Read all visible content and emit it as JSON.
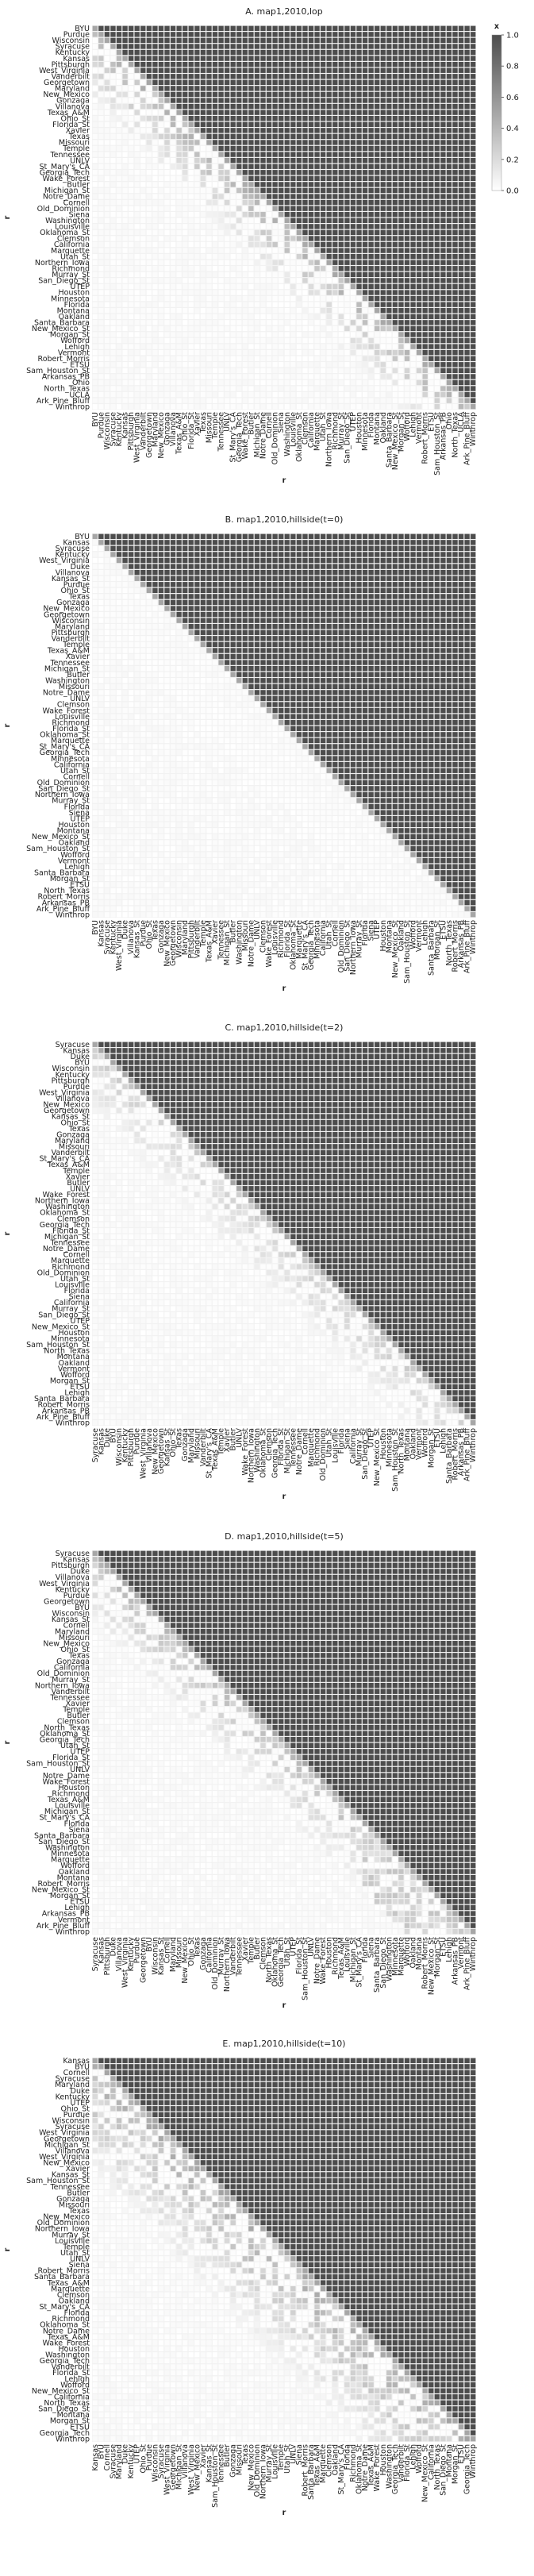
{
  "chart_data": {
    "type": "heatmap",
    "colormap": {
      "low": "#ffffff",
      "high": "#4d4d4d"
    },
    "colorbar": {
      "label": "x",
      "ticks": [
        1.0,
        0.8,
        0.6,
        0.4,
        0.2,
        0.0
      ],
      "range": [
        0.0,
        1.0
      ]
    },
    "panels": [
      {
        "title": "A. map1,2010,lop",
        "xlabel": "r",
        "ylabel": "r",
        "teams": [
          "BYU",
          "Purdue",
          "Wisconsin",
          "Syracuse",
          "Kentucky",
          "Kansas",
          "Pittsburgh",
          "West_Virginia",
          "Vanderbilt",
          "Georgetown",
          "Maryland",
          "New_Mexico",
          "Gonzaga",
          "Villanova",
          "Texas_A&M",
          "Ohio_St",
          "Florida_St",
          "Xavier",
          "Texas",
          "Missouri",
          "Temple",
          "Tennessee",
          "UNLV",
          "St_Mary's_CA",
          "Georgia_Tech",
          "Wake_Forest",
          "Butler",
          "Michigan_St",
          "Notre_Dame",
          "Cornell",
          "Old_Dominion",
          "Siena",
          "Washington",
          "Louisville",
          "Oklahoma_St",
          "Clemson",
          "California",
          "Marquette",
          "Utah_St",
          "Northern_Iowa",
          "Richmond",
          "Murray_St",
          "San_Diego_St",
          "UTEP",
          "Houston",
          "Minnesota",
          "Florida",
          "Montana",
          "Oakland",
          "Santa_Barbara",
          "New_Mexico_St",
          "Morgan_St",
          "Wofford",
          "Lehigh",
          "Vermont",
          "Robert_Morris",
          "ETSU",
          "Sam_Houston_St",
          "Arkansas_PB",
          "Ohio",
          "North_Texas",
          "UCLA",
          "Ark_Pine_Bluff",
          "Winthrop"
        ]
      },
      {
        "title": "B. map1,2010,hillside(t=0)",
        "xlabel": "r",
        "ylabel": "r",
        "teams": [
          "BYU",
          "Kansas",
          "Syracuse",
          "Kentucky",
          "West_Virginia",
          "Duke",
          "Villanova",
          "Kansas_St",
          "Purdue",
          "Ohio_St",
          "Texas",
          "Gonzaga",
          "New_Mexico",
          "Georgetown",
          "Wisconsin",
          "Maryland",
          "Pittsburgh",
          "Vanderbilt",
          "Temple",
          "Texas_A&M",
          "Xavier",
          "Tennessee",
          "Michigan_St",
          "Butler",
          "Washington",
          "Missouri",
          "Notre_Dame",
          "UNLV",
          "Clemson",
          "Wake_Forest",
          "Louisville",
          "Richmond",
          "Florida_St",
          "Oklahoma_St",
          "Marquette",
          "St_Mary's_CA",
          "Georgia_Tech",
          "Minnesota",
          "California",
          "Utah_St",
          "Cornell",
          "Old_Dominion",
          "San_Diego_St",
          "Northern_Iowa",
          "Murray_St",
          "Florida",
          "Siena",
          "UTEP",
          "Houston",
          "Montana",
          "New_Mexico_St",
          "Oakland",
          "Sam_Houston_St",
          "Wofford",
          "Vermont",
          "Lehigh",
          "Santa_Barbara",
          "Morgan_St",
          "ETSU",
          "North_Texas",
          "Robert_Morris",
          "Arkansas_PB",
          "Ark_Pine_Bluff",
          "Winthrop"
        ]
      },
      {
        "title": "C. map1,2010,hillside(t=2)",
        "xlabel": "r",
        "ylabel": "r",
        "teams": [
          "Syracuse",
          "Kansas",
          "Duke",
          "BYU",
          "Wisconsin",
          "Kentucky",
          "Pittsburgh",
          "Purdue",
          "West_Virginia",
          "Villanova",
          "New_Mexico",
          "Georgetown",
          "Kansas_St",
          "Ohio_St",
          "Texas",
          "Gonzaga",
          "Maryland",
          "Missouri",
          "Vanderbilt",
          "St_Mary's_CA",
          "Texas_A&M",
          "Temple",
          "Xavier",
          "Butler",
          "UNLV",
          "Wake_Forest",
          "Northern_Iowa",
          "Washington",
          "Oklahoma_St",
          "Clemson",
          "Georgia_Tech",
          "Florida_St",
          "Michigan_St",
          "Tennessee",
          "Notre_Dame",
          "Cornell",
          "Marquette",
          "Richmond",
          "Old_Dominion",
          "Utah_St",
          "Louisville",
          "Florida",
          "Siena",
          "California",
          "Murray_St",
          "San_Diego_St",
          "UTEP",
          "New_Mexico_St",
          "Houston",
          "Minnesota",
          "Sam_Houston_St",
          "North_Texas",
          "Montana",
          "Oakland",
          "Vermont",
          "Wofford",
          "Morgan_St",
          "ETSU",
          "Lehigh",
          "Santa_Barbara",
          "Robert_Morris",
          "Arkansas_PB",
          "Ark_Pine_Bluff",
          "Winthrop"
        ]
      },
      {
        "title": "D. map1,2010,hillside(t=5)",
        "xlabel": "r",
        "ylabel": "r",
        "teams": [
          "Syracuse",
          "Kansas",
          "Pittsburgh",
          "Duke",
          "Villanova",
          "West_Virginia",
          "Kentucky",
          "Purdue",
          "Georgetown",
          "BYU",
          "Wisconsin",
          "Kansas_St",
          "Cornell",
          "Maryland",
          "Missouri",
          "New_Mexico",
          "Ohio_St",
          "Texas",
          "Gonzaga",
          "California",
          "Old_Dominion",
          "Murray_St",
          "Northern_Iowa",
          "Vanderbilt",
          "Tennessee",
          "Xavier",
          "Temple",
          "Butler",
          "Clemson",
          "North_Texas",
          "Oklahoma_St",
          "Georgia_Tech",
          "Utah_St",
          "UTEP",
          "Florida_St",
          "Sam_Houston_St",
          "UNLV",
          "Notre_Dame",
          "Wake_Forest",
          "Houston",
          "Richmond",
          "Texas_A&M",
          "Louisville",
          "Michigan_St",
          "St_Mary's_CA",
          "Florida",
          "Siena",
          "Santa_Barbara",
          "San_Diego_St",
          "Washington",
          "Minnesota",
          "Marquette",
          "Wofford",
          "Oakland",
          "Montana",
          "Robert_Morris",
          "New_Mexico_St",
          "Morgan_St",
          "ETSU",
          "Lehigh",
          "Arkansas_PB",
          "Vermont",
          "Ark_Pine_Bluff",
          "Winthrop"
        ]
      },
      {
        "title": "E. map1,2010,hillside(t=10)",
        "xlabel": "r",
        "ylabel": "r",
        "teams": [
          "Kansas",
          "BYU",
          "Cornell",
          "Syracuse",
          "Maryland",
          "Duke",
          "Kentucky",
          "UTEP",
          "Ohio_St",
          "Purdue",
          "Wisconsin",
          "Syracuse",
          "West_Virginia",
          "Georgetown",
          "Michigan_St",
          "Villanova",
          "West_Virginia",
          "New_Mexico",
          "Xavier",
          "Kansas_St",
          "Sam_Houston_St",
          "Tennessee",
          "Butler",
          "Gonzaga",
          "Missouri",
          "Texas",
          "New_Mexico",
          "Old_Dominion",
          "Northern_Iowa",
          "Murray_St",
          "Louisville",
          "Temple",
          "Utah_St",
          "UNLV",
          "Siena",
          "Robert_Morris",
          "Santa_Barbara",
          "Texas_A&M",
          "Marquette",
          "Clemson",
          "Oakland",
          "St_Mary's_CA",
          "Florida",
          "Richmond",
          "Oklahoma_St",
          "Notre_Dame",
          "Texas_A&M",
          "Wake_Forest",
          "Houston",
          "Washington",
          "Georgia_Tech",
          "Vanderbilt",
          "Florida_St",
          "Lehigh",
          "Wofford",
          "New_Mexico_St",
          "California",
          "North_Texas",
          "San_Diego_St",
          "Montana",
          "Morgan_St",
          "ETSU",
          "Georgia_Tech",
          "Winthrop"
        ]
      }
    ]
  }
}
